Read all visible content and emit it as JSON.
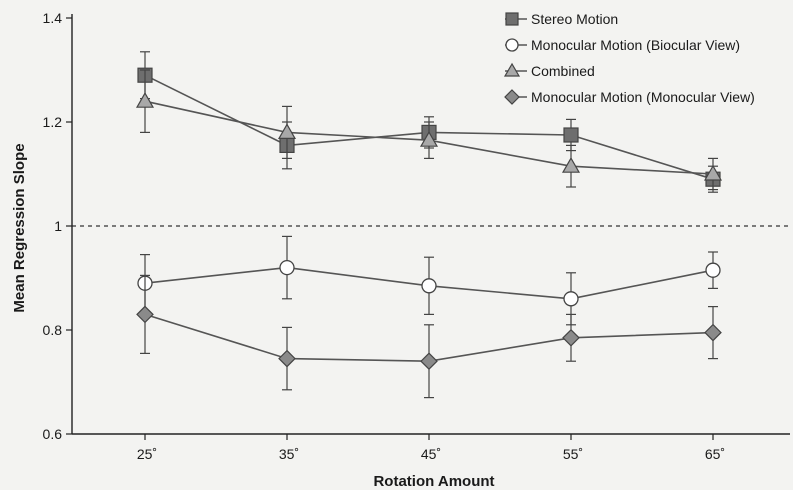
{
  "chart_data": {
    "type": "line",
    "title": "",
    "xlabel": "Rotation Amount",
    "ylabel": "Mean Regression Slope",
    "categories": [
      "25˚",
      "35˚",
      "45˚",
      "55˚",
      "65˚"
    ],
    "ylim": [
      0.6,
      1.4
    ],
    "yticks": [
      "0.6",
      "0.8",
      "1",
      "1.2",
      "1.4"
    ],
    "reference_line": 1.0,
    "grid": false,
    "legend_position": "top-right",
    "series": [
      {
        "name": "Stereo Motion",
        "values": [
          1.29,
          1.155,
          1.18,
          1.175,
          1.09
        ],
        "error": [
          0.045,
          0.045,
          0.03,
          0.03,
          0.025
        ],
        "marker": "square",
        "color": "#6e6e6e"
      },
      {
        "name": "Monocular Motion (Biocular View)",
        "values": [
          0.89,
          0.92,
          0.885,
          0.86,
          0.915
        ],
        "error": [
          0.055,
          0.06,
          0.055,
          0.05,
          0.035
        ],
        "marker": "circle",
        "color": "#ffffff"
      },
      {
        "name": "Combined",
        "values": [
          1.24,
          1.18,
          1.165,
          1.115,
          1.1
        ],
        "error": [
          0.06,
          0.05,
          0.035,
          0.04,
          0.03
        ],
        "marker": "triangle",
        "color": "#a8a8a8"
      },
      {
        "name": "Monocular Motion (Monocular View)",
        "values": [
          0.83,
          0.745,
          0.74,
          0.785,
          0.795
        ],
        "error": [
          0.075,
          0.06,
          0.07,
          0.045,
          0.05
        ],
        "marker": "diamond",
        "color": "#8a8a8a"
      }
    ]
  }
}
